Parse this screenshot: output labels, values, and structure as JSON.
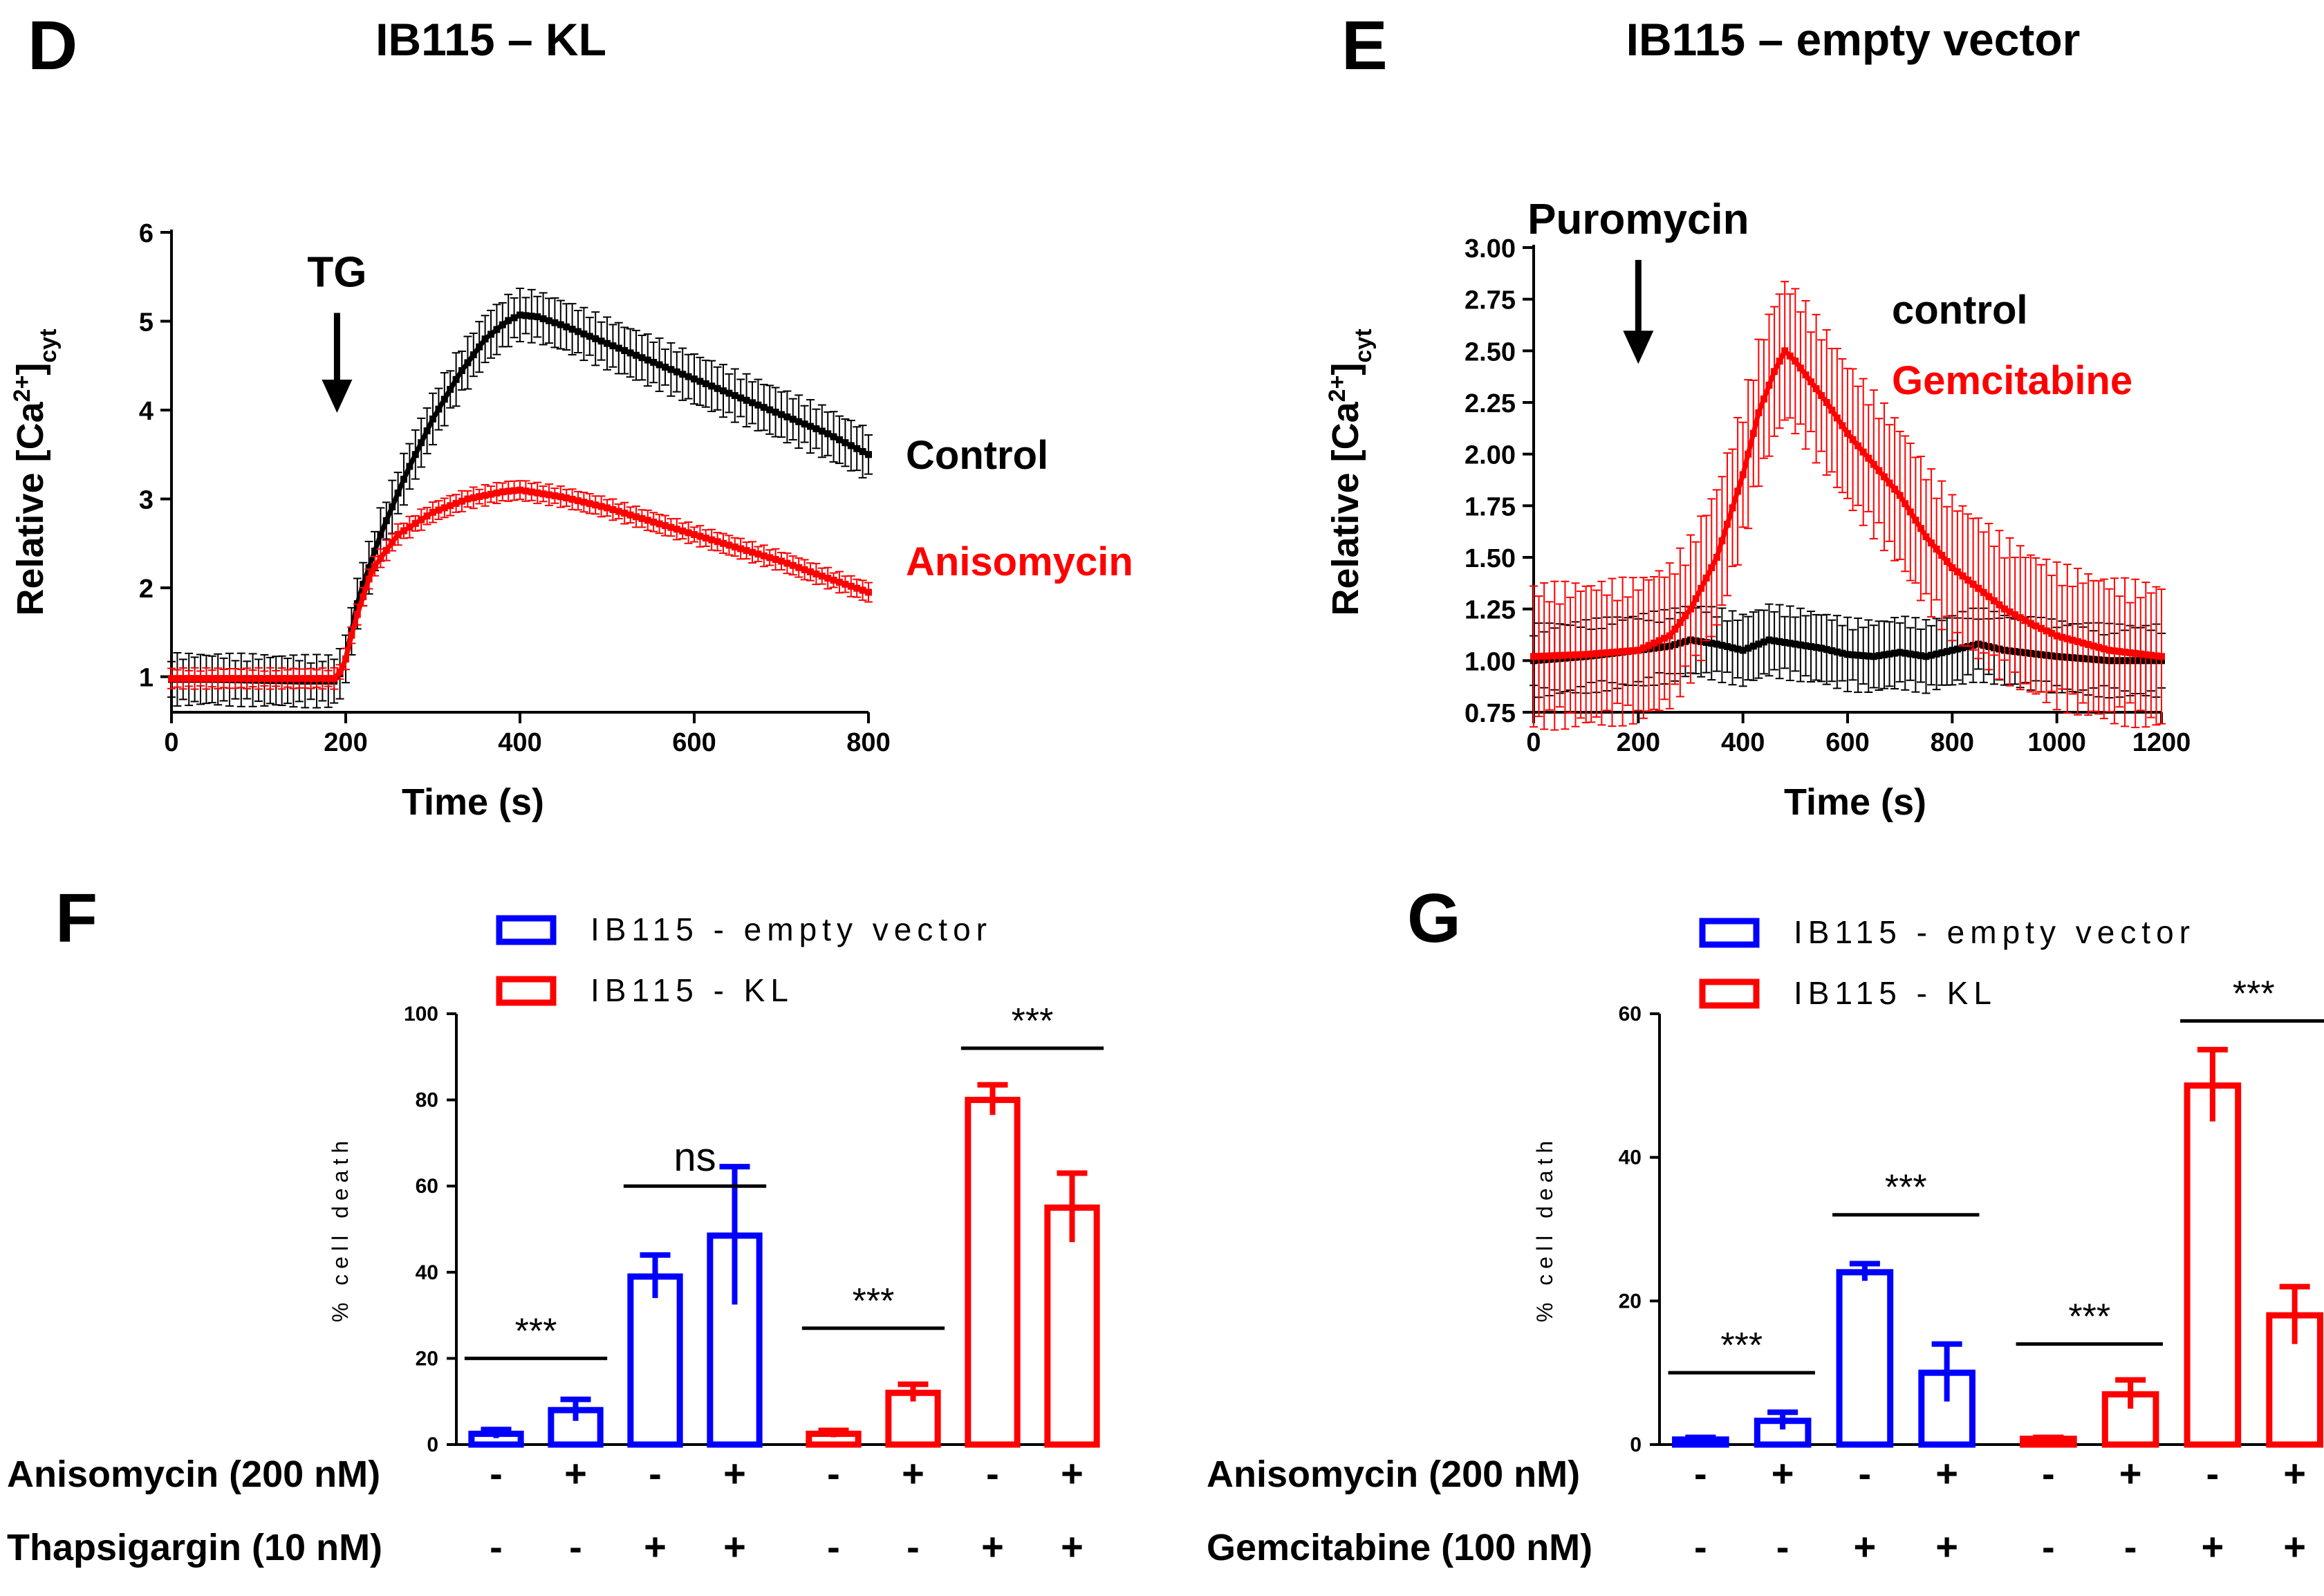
{
  "colors": {
    "black": "#000000",
    "red": "#ff0000",
    "blue": "#0000ff"
  },
  "chart_data": [
    {
      "panel": "D",
      "type": "line",
      "title": "IB115 – KL",
      "xlabel": "Time (s)",
      "ylabel": "Relative [Ca",
      "ylabel_sup": "2+",
      "ylabel_close": "]",
      "ylabel_sub": "cyt",
      "xlim": [
        0,
        800
      ],
      "ylim": [
        0.6,
        6
      ],
      "xticks": [
        0,
        200,
        400,
        600,
        800
      ],
      "yticks": [
        1,
        2,
        3,
        4,
        5,
        6
      ],
      "annotation": {
        "text": "TG",
        "x": 190,
        "y_top": 5.0,
        "y_bottom": 4.0
      },
      "series": [
        {
          "name": "Control",
          "color": "#000000",
          "points": [
            [
              0,
              0.97
            ],
            [
              50,
              0.97
            ],
            [
              100,
              0.96
            ],
            [
              150,
              0.95
            ],
            [
              190,
              0.95
            ],
            [
              200,
              1.2
            ],
            [
              215,
              1.9
            ],
            [
              240,
              2.6
            ],
            [
              270,
              3.3
            ],
            [
              300,
              3.9
            ],
            [
              330,
              4.4
            ],
            [
              360,
              4.8
            ],
            [
              385,
              5.0
            ],
            [
              400,
              5.07
            ],
            [
              420,
              5.05
            ],
            [
              450,
              4.95
            ],
            [
              500,
              4.75
            ],
            [
              550,
              4.55
            ],
            [
              600,
              4.35
            ],
            [
              650,
              4.15
            ],
            [
              700,
              3.95
            ],
            [
              750,
              3.75
            ],
            [
              800,
              3.5
            ]
          ],
          "error": 0.25
        },
        {
          "name": "Anisomycin",
          "color": "#ff0000",
          "points": [
            [
              0,
              0.98
            ],
            [
              50,
              0.98
            ],
            [
              100,
              0.98
            ],
            [
              150,
              0.98
            ],
            [
              190,
              0.98
            ],
            [
              200,
              1.2
            ],
            [
              210,
              1.6
            ],
            [
              230,
              2.2
            ],
            [
              260,
              2.6
            ],
            [
              300,
              2.85
            ],
            [
              340,
              3.0
            ],
            [
              380,
              3.08
            ],
            [
              400,
              3.1
            ],
            [
              450,
              3.02
            ],
            [
              500,
              2.9
            ],
            [
              550,
              2.75
            ],
            [
              600,
              2.6
            ],
            [
              650,
              2.45
            ],
            [
              700,
              2.3
            ],
            [
              750,
              2.12
            ],
            [
              800,
              1.95
            ]
          ],
          "error": 0.1
        }
      ]
    },
    {
      "panel": "E",
      "type": "line",
      "title": "IB115 – empty vector",
      "xlabel": "Time (s)",
      "ylabel": "Relative [Ca",
      "ylabel_sup": "2+",
      "ylabel_close": "]",
      "ylabel_sub": "cyt",
      "xlim": [
        0,
        1200
      ],
      "ylim": [
        0.75,
        3.0
      ],
      "xticks": [
        0,
        200,
        400,
        600,
        800,
        1000,
        1200
      ],
      "yticks": [
        "0.75",
        "1.00",
        "1.25",
        "1.50",
        "1.75",
        "2.00",
        "2.25",
        "2.50",
        "2.75",
        "3.00"
      ],
      "annotation": {
        "text": "Puromycin",
        "x": 200,
        "y_top": 2.9,
        "y_bottom": 2.45
      },
      "series": [
        {
          "name": "control",
          "color": "#000000",
          "points": [
            [
              0,
              1.0
            ],
            [
              100,
              1.02
            ],
            [
              200,
              1.05
            ],
            [
              260,
              1.07
            ],
            [
              300,
              1.1
            ],
            [
              350,
              1.08
            ],
            [
              400,
              1.05
            ],
            [
              450,
              1.1
            ],
            [
              500,
              1.08
            ],
            [
              550,
              1.06
            ],
            [
              600,
              1.03
            ],
            [
              650,
              1.02
            ],
            [
              700,
              1.04
            ],
            [
              750,
              1.02
            ],
            [
              800,
              1.05
            ],
            [
              850,
              1.08
            ],
            [
              900,
              1.05
            ],
            [
              1000,
              1.02
            ],
            [
              1100,
              1.0
            ],
            [
              1200,
              1.0
            ]
          ],
          "error": 0.15
        },
        {
          "name": "Gemcitabine",
          "color": "#ff0000",
          "points": [
            [
              0,
              1.02
            ],
            [
              100,
              1.03
            ],
            [
              200,
              1.05
            ],
            [
              260,
              1.12
            ],
            [
              300,
              1.25
            ],
            [
              350,
              1.5
            ],
            [
              400,
              1.9
            ],
            [
              430,
              2.2
            ],
            [
              460,
              2.4
            ],
            [
              480,
              2.5
            ],
            [
              500,
              2.45
            ],
            [
              530,
              2.35
            ],
            [
              560,
              2.25
            ],
            [
              600,
              2.1
            ],
            [
              650,
              1.95
            ],
            [
              700,
              1.8
            ],
            [
              750,
              1.6
            ],
            [
              800,
              1.45
            ],
            [
              850,
              1.35
            ],
            [
              900,
              1.25
            ],
            [
              950,
              1.18
            ],
            [
              1000,
              1.12
            ],
            [
              1100,
              1.05
            ],
            [
              1200,
              1.02
            ]
          ],
          "error": 0.3
        }
      ]
    },
    {
      "panel": "F",
      "type": "bar",
      "ylabel": "% cell death",
      "ylim": [
        0,
        100
      ],
      "yticks": [
        0,
        20,
        40,
        60,
        80,
        100
      ],
      "legend": [
        "IB115 - empty vector",
        "IB115 - KL"
      ],
      "row_labels": [
        "Anisomycin (200 nM)",
        "Thapsigargin (10 nM)"
      ],
      "bars": [
        {
          "group": "IB115 - empty vector",
          "value": 2.5,
          "err": 1,
          "row1": "-",
          "row2": "-",
          "color": "#0000ff"
        },
        {
          "group": "IB115 - empty vector",
          "value": 8,
          "err": 2.5,
          "row1": "+",
          "row2": "-",
          "color": "#0000ff"
        },
        {
          "group": "IB115 - empty vector",
          "value": 39,
          "err": 5,
          "row1": "-",
          "row2": "+",
          "color": "#0000ff"
        },
        {
          "group": "IB115 - empty vector",
          "value": 48.5,
          "err": 16,
          "row1": "+",
          "row2": "+",
          "color": "#0000ff"
        },
        {
          "group": "IB115 - KL",
          "value": 2.5,
          "err": 0.8,
          "row1": "-",
          "row2": "-",
          "color": "#ff0000"
        },
        {
          "group": "IB115 - KL",
          "value": 12,
          "err": 2,
          "row1": "+",
          "row2": "-",
          "color": "#ff0000"
        },
        {
          "group": "IB115 - KL",
          "value": 80,
          "err": 3.5,
          "row1": "-",
          "row2": "+",
          "color": "#ff0000"
        },
        {
          "group": "IB115 - KL",
          "value": 55,
          "err": 8,
          "row1": "+",
          "row2": "+",
          "color": "#ff0000"
        }
      ],
      "significance": [
        {
          "from": 0,
          "to": 1,
          "label": "***",
          "y": 20
        },
        {
          "from": 2,
          "to": 3,
          "label": "ns",
          "y": 60
        },
        {
          "from": 4,
          "to": 5,
          "label": "***",
          "y": 27
        },
        {
          "from": 6,
          "to": 7,
          "label": "***",
          "y": 92
        }
      ]
    },
    {
      "panel": "G",
      "type": "bar",
      "ylabel": "% cell death",
      "ylim": [
        0,
        60
      ],
      "yticks": [
        0,
        20,
        40,
        60
      ],
      "legend": [
        "IB115 - empty vector",
        "IB115 - KL"
      ],
      "row_labels": [
        "Anisomycin (200 nM)",
        "Gemcitabine (100 nM)"
      ],
      "bars": [
        {
          "group": "IB115 - empty vector",
          "value": 0.7,
          "err": 0.3,
          "row1": "-",
          "row2": "-",
          "color": "#0000ff"
        },
        {
          "group": "IB115 - empty vector",
          "value": 3.3,
          "err": 1.2,
          "row1": "+",
          "row2": "-",
          "color": "#0000ff"
        },
        {
          "group": "IB115 - empty vector",
          "value": 24,
          "err": 1.2,
          "row1": "-",
          "row2": "+",
          "color": "#0000ff"
        },
        {
          "group": "IB115 - empty vector",
          "value": 10,
          "err": 4,
          "row1": "+",
          "row2": "+",
          "color": "#0000ff"
        },
        {
          "group": "IB115 - KL",
          "value": 0.8,
          "err": 0.2,
          "row1": "-",
          "row2": "-",
          "color": "#ff0000"
        },
        {
          "group": "IB115 - KL",
          "value": 7,
          "err": 2,
          "row1": "+",
          "row2": "-",
          "color": "#ff0000"
        },
        {
          "group": "IB115 - KL",
          "value": 50,
          "err": 5,
          "row1": "-",
          "row2": "+",
          "color": "#ff0000"
        },
        {
          "group": "IB115 - KL",
          "value": 18,
          "err": 4,
          "row1": "+",
          "row2": "+",
          "color": "#ff0000"
        }
      ],
      "significance": [
        {
          "from": 0,
          "to": 1,
          "label": "***",
          "y": 10
        },
        {
          "from": 2,
          "to": 3,
          "label": "***",
          "y": 32
        },
        {
          "from": 4,
          "to": 5,
          "label": "***",
          "y": 14
        },
        {
          "from": 6,
          "to": 7,
          "label": "***",
          "y": 59
        }
      ]
    }
  ]
}
